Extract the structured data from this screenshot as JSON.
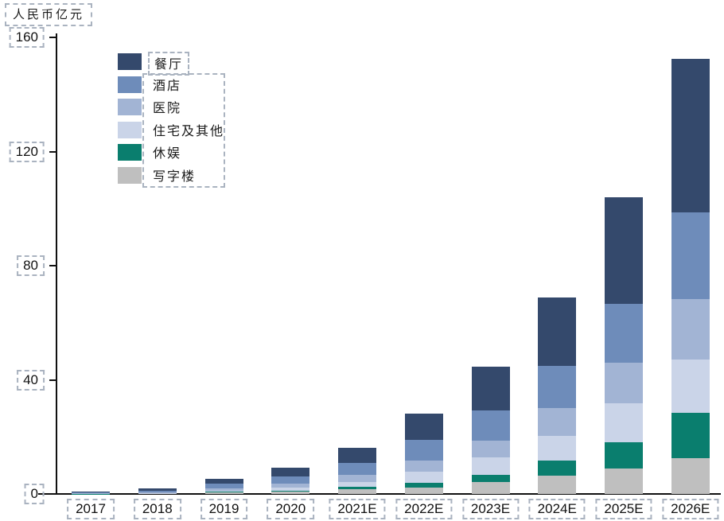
{
  "chart_data": {
    "type": "bar",
    "stacked": true,
    "axis_title": "人民币亿元",
    "categories": [
      "2017",
      "2018",
      "2019",
      "2020",
      "2021E",
      "2022E",
      "2023E",
      "2024E",
      "2025E",
      "2026E"
    ],
    "series": [
      {
        "name": "餐厅",
        "color": "#34496c",
        "values": [
          0.3,
          0.9,
          1.7,
          3.1,
          5.3,
          9.2,
          15.3,
          23.9,
          37.2,
          53.9
        ]
      },
      {
        "name": "酒店",
        "color": "#6e8cba",
        "values": [
          0.2,
          0.5,
          1.7,
          2.5,
          4.2,
          7.2,
          10.6,
          15.0,
          20.8,
          30.3
        ]
      },
      {
        "name": "医院",
        "color": "#a2b4d4",
        "values": [
          0.1,
          0.25,
          0.8,
          1.4,
          2.5,
          3.9,
          5.8,
          9.7,
          14.2,
          21.1
        ]
      },
      {
        "name": "住宅及其他",
        "color": "#cad4e8",
        "values": [
          0.05,
          0.15,
          0.4,
          1.1,
          1.7,
          3.9,
          6.1,
          8.6,
          13.6,
          18.9
        ]
      },
      {
        "name": "休娱",
        "color": "#0a7e6e",
        "values": [
          0.02,
          0.05,
          0.2,
          0.3,
          0.8,
          1.7,
          2.5,
          5.3,
          9.2,
          15.8
        ]
      },
      {
        "name": "写字楼",
        "color": "#bfbfbf",
        "values": [
          0.1,
          0.2,
          0.5,
          0.8,
          1.6,
          2.2,
          4.2,
          6.4,
          8.9,
          12.5
        ]
      }
    ],
    "stack_order_bottom_to_top": [
      "写字楼",
      "休娱",
      "住宅及其他",
      "医院",
      "酒店",
      "餐厅"
    ],
    "yticks": [
      0,
      40,
      80,
      120,
      160
    ],
    "ylim": [
      0,
      160
    ],
    "grid": false,
    "legend_position": "top-left",
    "annotation_box_color": "#aab3c0"
  }
}
